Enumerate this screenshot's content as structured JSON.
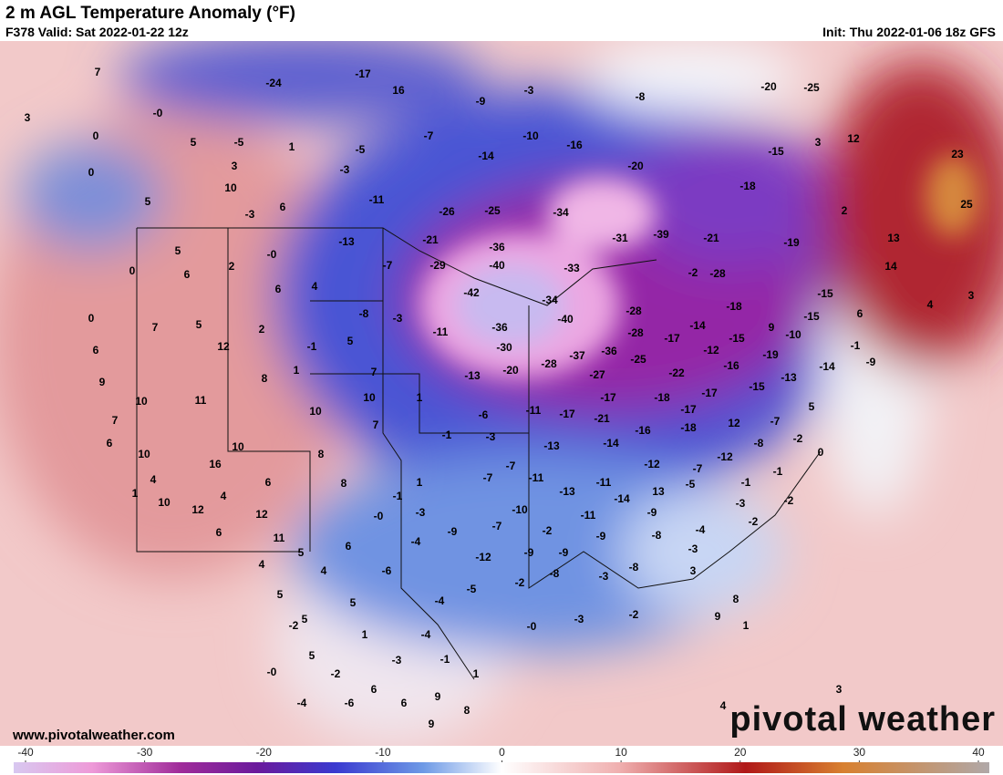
{
  "header": {
    "title": "2 m AGL Temperature Anomaly (°F)",
    "valid": "F378 Valid: Sat 2022-01-22 12z",
    "init": "Thu 2022-01-06 18z GFS",
    "init_prefix": "Init:"
  },
  "map": {
    "labels": [
      "7",
      "3",
      "0",
      "-0",
      "5",
      "-5",
      "1",
      "-24",
      "-17",
      "16",
      "3",
      "10",
      "0",
      "5",
      "-3",
      "6",
      "-5",
      "-3",
      "-11",
      "-7",
      "-9",
      "-3",
      "-8",
      "-10",
      "-14",
      "-16",
      "-20",
      "-18",
      "-15",
      "3",
      "12",
      "-20",
      "-25",
      "23",
      "25",
      "2",
      "13",
      "14",
      "4",
      "3",
      "-26",
      "-25",
      "-34",
      "-31",
      "-39",
      "-21",
      "-19",
      "-13",
      "-0",
      "2",
      "5",
      "0",
      "6",
      "4",
      "6",
      "-21",
      "-29",
      "-36",
      "-40",
      "-33",
      "-2",
      "-28",
      "-7",
      "-42",
      "-34",
      "-40",
      "-28",
      "-14",
      "-18",
      "-15",
      "-15",
      "6",
      "9",
      "-10",
      "-8",
      "-3",
      "0",
      "7",
      "5",
      "2",
      "12",
      "-1",
      "5",
      "6",
      "-36",
      "-11",
      "-30",
      "-37",
      "-36",
      "-28",
      "-17",
      "-12",
      "-15",
      "-19",
      "-1",
      "-9",
      "-25",
      "-28",
      "-20",
      "-13",
      "1",
      "8",
      "7",
      "-27",
      "-22",
      "-16",
      "-13",
      "-14",
      "9",
      "10",
      "11",
      "1",
      "10",
      "10",
      "7",
      "-17",
      "-18",
      "-17",
      "-15",
      "5",
      "7",
      "6",
      "-6",
      "-11",
      "-17",
      "-21",
      "-17",
      "-16",
      "-18",
      "12",
      "-7",
      "-1",
      "-3",
      "-13",
      "-14",
      "-12",
      "-7",
      "-12",
      "-8",
      "-2",
      "0",
      "10",
      "10",
      "16",
      "8",
      "4",
      "1",
      "6",
      "4",
      "8",
      "1",
      "-7",
      "-7",
      "-11",
      "-11",
      "-13",
      "-1",
      "-1",
      "10",
      "12",
      "12",
      "11",
      "-1",
      "-0",
      "-3",
      "-10",
      "-14",
      "13",
      "-5",
      "-3",
      "-2",
      "-11",
      "-9",
      "-2",
      "-7",
      "-9",
      "-4",
      "-9",
      "-8",
      "-4",
      "-2",
      "6",
      "5",
      "6",
      "-12",
      "-9",
      "-9",
      "-3",
      "4",
      "4",
      "-6",
      "-8",
      "-2",
      "-5",
      "-3",
      "-8",
      "3",
      "5",
      "5",
      "-4",
      "8",
      "5",
      "-2",
      "1",
      "-4",
      "-0",
      "-3",
      "-2",
      "9",
      "1",
      "5",
      "-0",
      "-3",
      "-1",
      "-2",
      "1",
      "-4",
      "-6",
      "6",
      "6",
      "9",
      "8",
      "9",
      "3",
      "4"
    ]
  },
  "colorbar": {
    "range": [
      -40,
      40
    ],
    "ticks": [
      -40,
      -30,
      -20,
      -10,
      0,
      10,
      20,
      30,
      40
    ]
  },
  "footer": {
    "site": "www.pivotalweather.com",
    "logo": "pivotal weather"
  }
}
